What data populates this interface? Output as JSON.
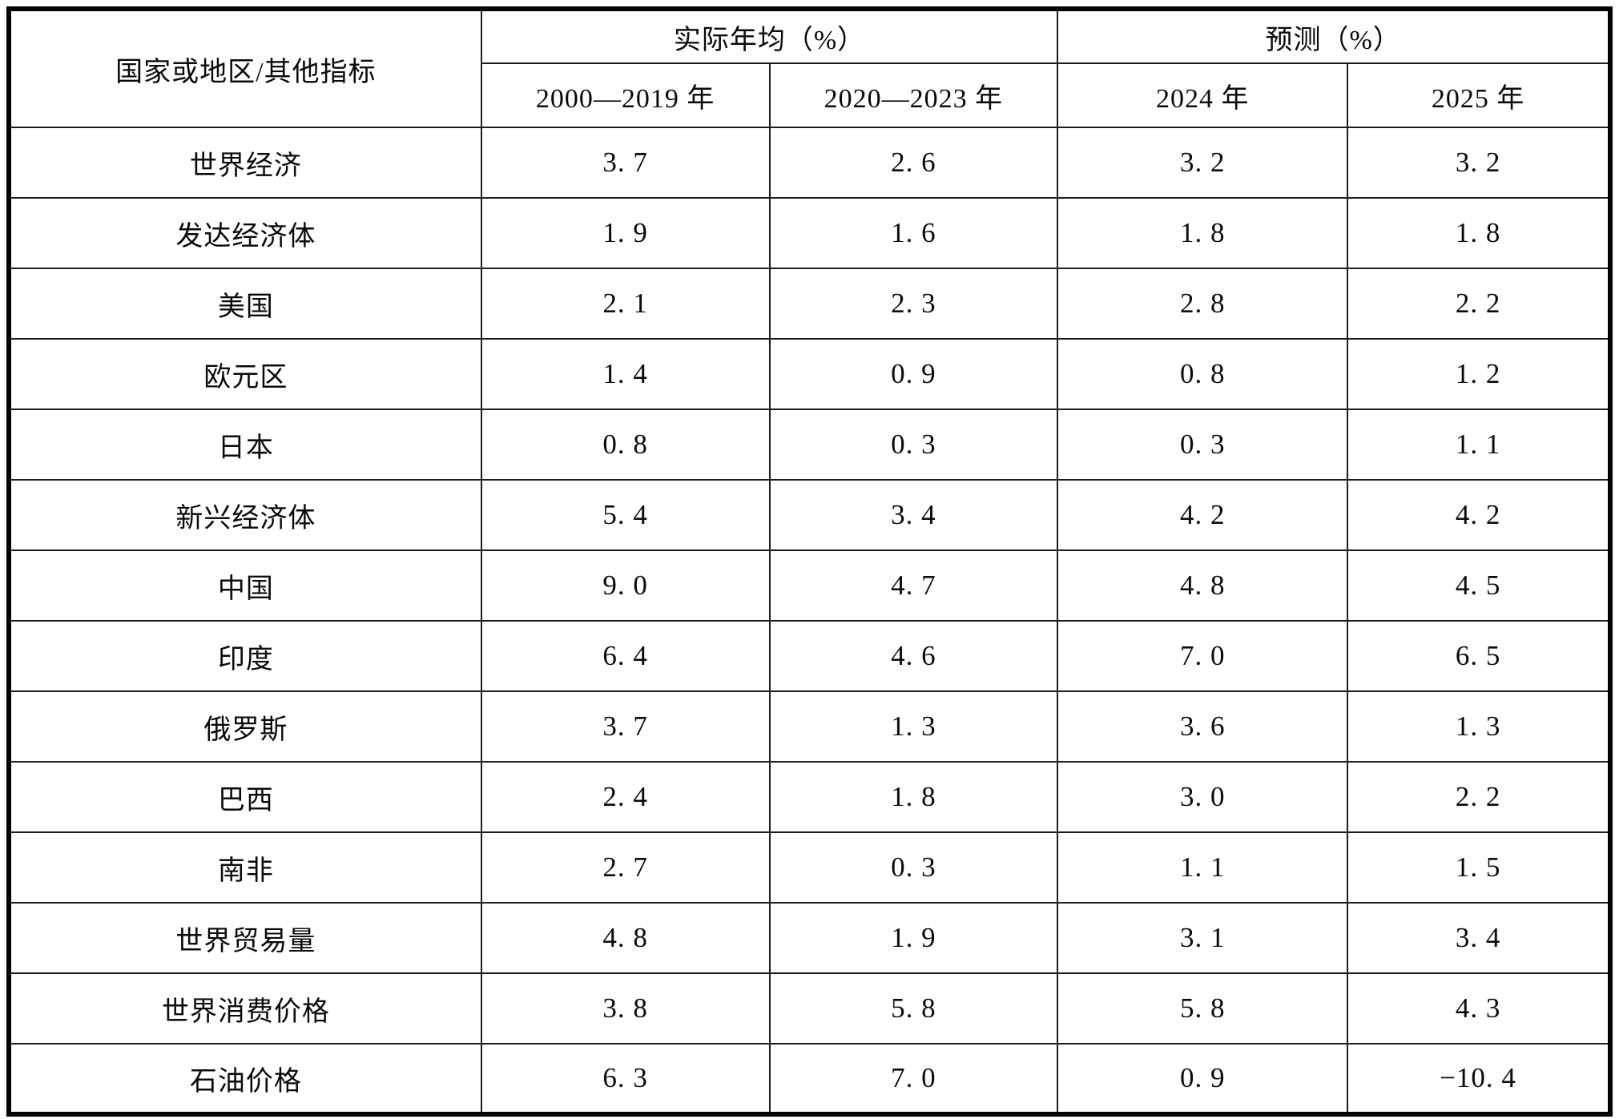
{
  "colors": {
    "background": "#ffffff",
    "border": "#000000",
    "text": "#0a0a0a"
  },
  "table": {
    "corner_header": "国家或地区/其他指标",
    "group_headers": [
      "实际年均（%）",
      "预测（%）"
    ],
    "column_headers": [
      "2000—2019 年",
      "2020—2023 年",
      "2024 年",
      "2025 年"
    ],
    "rows": [
      {
        "label": "世界经济",
        "values": [
          "3. 7",
          "2. 6",
          "3. 2",
          "3. 2"
        ]
      },
      {
        "label": "发达经济体",
        "values": [
          "1. 9",
          "1. 6",
          "1. 8",
          "1. 8"
        ]
      },
      {
        "label": "美国",
        "values": [
          "2. 1",
          "2. 3",
          "2. 8",
          "2. 2"
        ]
      },
      {
        "label": "欧元区",
        "values": [
          "1. 4",
          "0. 9",
          "0. 8",
          "1. 2"
        ]
      },
      {
        "label": "日本",
        "values": [
          "0. 8",
          "0. 3",
          "0. 3",
          "1. 1"
        ]
      },
      {
        "label": "新兴经济体",
        "values": [
          "5. 4",
          "3. 4",
          "4. 2",
          "4. 2"
        ]
      },
      {
        "label": "中国",
        "values": [
          "9. 0",
          "4. 7",
          "4. 8",
          "4. 5"
        ]
      },
      {
        "label": "印度",
        "values": [
          "6. 4",
          "4. 6",
          "7. 0",
          "6. 5"
        ]
      },
      {
        "label": "俄罗斯",
        "values": [
          "3. 7",
          "1. 3",
          "3. 6",
          "1. 3"
        ]
      },
      {
        "label": "巴西",
        "values": [
          "2. 4",
          "1. 8",
          "3. 0",
          "2. 2"
        ]
      },
      {
        "label": "南非",
        "values": [
          "2. 7",
          "0. 3",
          "1. 1",
          "1. 5"
        ]
      },
      {
        "label": "世界贸易量",
        "values": [
          "4. 8",
          "1. 9",
          "3. 1",
          "3. 4"
        ]
      },
      {
        "label": "世界消费价格",
        "values": [
          "3. 8",
          "5. 8",
          "5. 8",
          "4. 3"
        ]
      },
      {
        "label": "石油价格",
        "values": [
          "6. 3",
          "7. 0",
          "0. 9",
          "−10. 4"
        ]
      }
    ]
  },
  "chart_data": {
    "type": "table",
    "row_header": "国家或地区/其他指标",
    "column_groups": [
      {
        "label": "实际年均（%）",
        "columns": [
          "2000—2019 年",
          "2020—2023 年"
        ]
      },
      {
        "label": "预测（%）",
        "columns": [
          "2024 年",
          "2025 年"
        ]
      }
    ],
    "rows": [
      {
        "label": "世界经济",
        "values": [
          3.7,
          2.6,
          3.2,
          3.2
        ]
      },
      {
        "label": "发达经济体",
        "values": [
          1.9,
          1.6,
          1.8,
          1.8
        ]
      },
      {
        "label": "美国",
        "values": [
          2.1,
          2.3,
          2.8,
          2.2
        ]
      },
      {
        "label": "欧元区",
        "values": [
          1.4,
          0.9,
          0.8,
          1.2
        ]
      },
      {
        "label": "日本",
        "values": [
          0.8,
          0.3,
          0.3,
          1.1
        ]
      },
      {
        "label": "新兴经济体",
        "values": [
          5.4,
          3.4,
          4.2,
          4.2
        ]
      },
      {
        "label": "中国",
        "values": [
          9.0,
          4.7,
          4.8,
          4.5
        ]
      },
      {
        "label": "印度",
        "values": [
          6.4,
          4.6,
          7.0,
          6.5
        ]
      },
      {
        "label": "俄罗斯",
        "values": [
          3.7,
          1.3,
          3.6,
          1.3
        ]
      },
      {
        "label": "巴西",
        "values": [
          2.4,
          1.8,
          3.0,
          2.2
        ]
      },
      {
        "label": "南非",
        "values": [
          2.7,
          0.3,
          1.1,
          1.5
        ]
      },
      {
        "label": "世界贸易量",
        "values": [
          4.8,
          1.9,
          3.1,
          3.4
        ]
      },
      {
        "label": "世界消费价格",
        "values": [
          3.8,
          5.8,
          5.8,
          4.3
        ]
      },
      {
        "label": "石油价格",
        "values": [
          6.3,
          7.0,
          0.9,
          -10.4
        ]
      }
    ]
  }
}
